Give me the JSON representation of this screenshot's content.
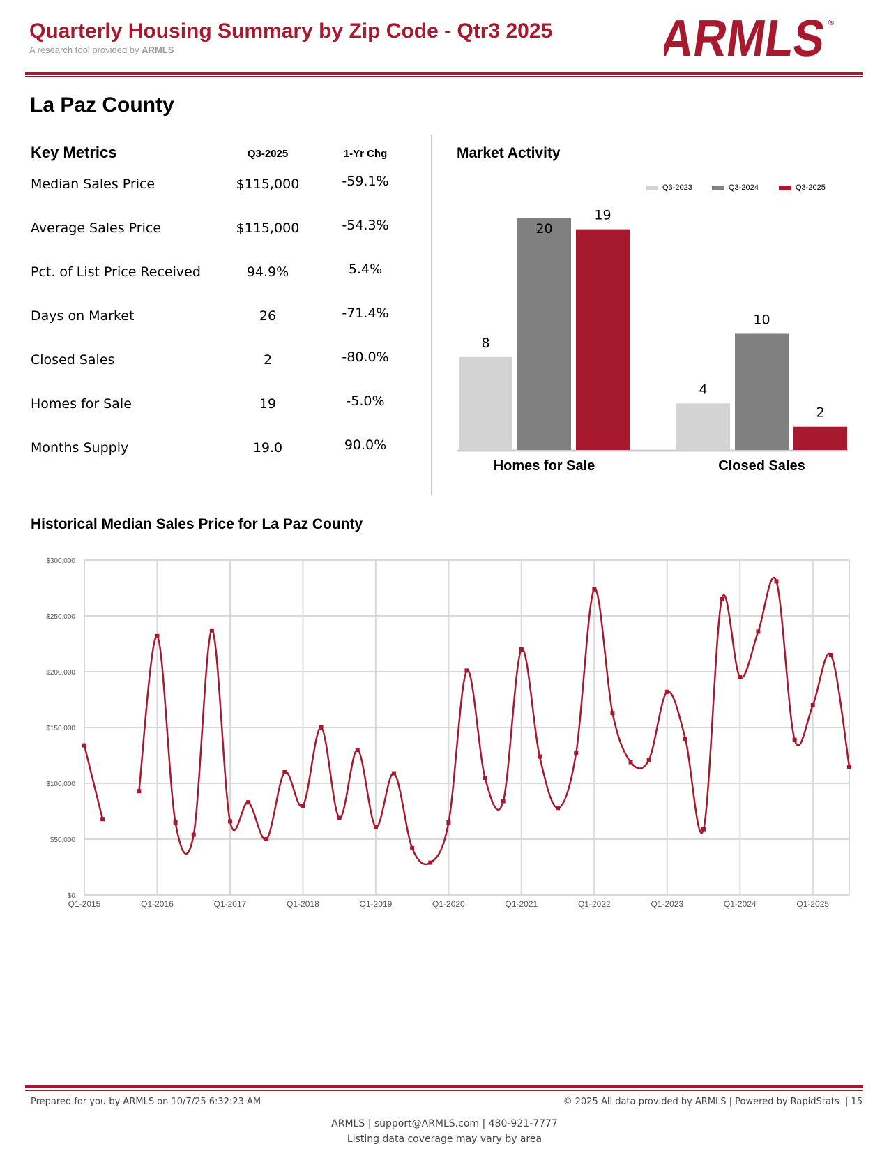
{
  "header": {
    "title": "Quarterly Housing Summary by Zip Code - Qtr3 2025",
    "subtitle_prefix": "A research tool provided by",
    "subtitle_brand": "ARMLS",
    "logo_text": "ARMLS"
  },
  "county": "La Paz County",
  "key_metrics": {
    "title": "Key Metrics",
    "col_value": "Q3-2025",
    "col_change": "1-Yr Chg",
    "rows": [
      {
        "label": "Median Sales Price",
        "value": "$115,000",
        "change": "-59.1%"
      },
      {
        "label": "Average Sales Price",
        "value": "$115,000",
        "change": "-54.3%"
      },
      {
        "label": "Pct. of List Price Received",
        "value": "94.9%",
        "change": "5.4%"
      },
      {
        "label": "Days on Market",
        "value": "26",
        "change": "-71.4%"
      },
      {
        "label": "Closed Sales",
        "value": "2",
        "change": "-80.0%"
      },
      {
        "label": "Homes for Sale",
        "value": "19",
        "change": "-5.0%"
      },
      {
        "label": "Months Supply",
        "value": "19.0",
        "change": "90.0%"
      }
    ]
  },
  "colors": {
    "brand": "#a6192e",
    "q3_2023": "#d3d3d3",
    "q3_2024": "#808080",
    "q3_2025": "#a6192e",
    "grid": "#d9d9d9"
  },
  "chart_data": [
    {
      "type": "bar",
      "title": "Market Activity",
      "categories": [
        "Homes for Sale",
        "Closed Sales"
      ],
      "series": [
        {
          "name": "Q3-2023",
          "values": [
            8,
            4
          ]
        },
        {
          "name": "Q3-2024",
          "values": [
            20,
            10
          ]
        },
        {
          "name": "Q3-2025",
          "values": [
            19,
            2
          ]
        }
      ],
      "legend": "top-right",
      "ylim": [
        0,
        20
      ]
    },
    {
      "type": "line",
      "title": "Historical Median Sales Price for La Paz County",
      "x": [
        "Q1-2015",
        "Q2-2015",
        "Q3-2015",
        "Q4-2015",
        "Q1-2016",
        "Q2-2016",
        "Q3-2016",
        "Q4-2016",
        "Q1-2017",
        "Q2-2017",
        "Q3-2017",
        "Q4-2017",
        "Q1-2018",
        "Q2-2018",
        "Q3-2018",
        "Q4-2018",
        "Q1-2019",
        "Q2-2019",
        "Q3-2019",
        "Q4-2019",
        "Q1-2020",
        "Q2-2020",
        "Q3-2020",
        "Q4-2020",
        "Q1-2021",
        "Q2-2021",
        "Q3-2021",
        "Q4-2021",
        "Q1-2022",
        "Q2-2022",
        "Q3-2022",
        "Q4-2022",
        "Q1-2023",
        "Q2-2023",
        "Q3-2023",
        "Q4-2023",
        "Q1-2024",
        "Q2-2024",
        "Q3-2024",
        "Q4-2024",
        "Q1-2025",
        "Q2-2025",
        "Q3-2025"
      ],
      "y": [
        134000,
        68000,
        null,
        93000,
        232000,
        65000,
        54000,
        237000,
        66000,
        83000,
        50000,
        110000,
        80000,
        150000,
        69000,
        130000,
        61000,
        109000,
        42000,
        29000,
        65000,
        201000,
        105000,
        84000,
        220000,
        124000,
        78000,
        127000,
        274000,
        163000,
        119000,
        121000,
        182000,
        140000,
        59000,
        265000,
        195000,
        236000,
        281000,
        139000,
        170000,
        215000,
        115000
      ],
      "xticks": [
        "Q1-2015",
        "Q1-2016",
        "Q1-2017",
        "Q1-2018",
        "Q1-2019",
        "Q1-2020",
        "Q1-2021",
        "Q1-2022",
        "Q1-2023",
        "Q1-2024",
        "Q1-2025"
      ],
      "yticks": [
        "$0",
        "$50,000",
        "$100,000",
        "$150,000",
        "$200,000",
        "$250,000",
        "$300,000"
      ],
      "ylim": [
        0,
        300000
      ],
      "grid": true
    }
  ],
  "footer": {
    "prepared": "Prepared for you by ARMLS on 10/7/25 6:32:23 AM",
    "copyright": "© 2025 All data provided by ARMLS | Powered by RapidStats  | 15",
    "contact": "ARMLS | support@ARMLS.com | 480-921-7777",
    "coverage": "Listing data coverage may vary by area"
  }
}
